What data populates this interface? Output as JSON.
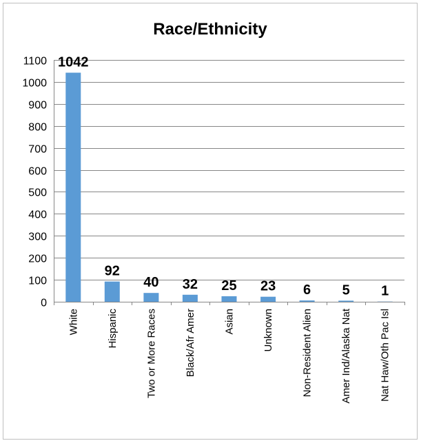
{
  "chart_data": {
    "type": "bar",
    "title": "Race/Ethnicity",
    "xlabel": "",
    "ylabel": "",
    "categories": [
      "White",
      "Hispanic",
      "Two or More Races",
      "Black/Afr Amer",
      "Asian",
      "Unknown",
      "Non-Resident Alien",
      "Amer Ind/Alaska Nat",
      "Nat Haw/Oth Pac Isl"
    ],
    "values": [
      1042,
      92,
      40,
      32,
      25,
      23,
      6,
      5,
      1
    ],
    "data_labels": [
      "1042",
      "92",
      "40",
      "32",
      "25",
      "23",
      "6",
      "5",
      "1"
    ],
    "ylim": [
      0,
      1100
    ],
    "y_ticks": [
      0,
      100,
      200,
      300,
      400,
      500,
      600,
      700,
      800,
      900,
      1000,
      1100
    ],
    "grid": true,
    "legend": "none",
    "bar_color": "#5b9bd5"
  }
}
